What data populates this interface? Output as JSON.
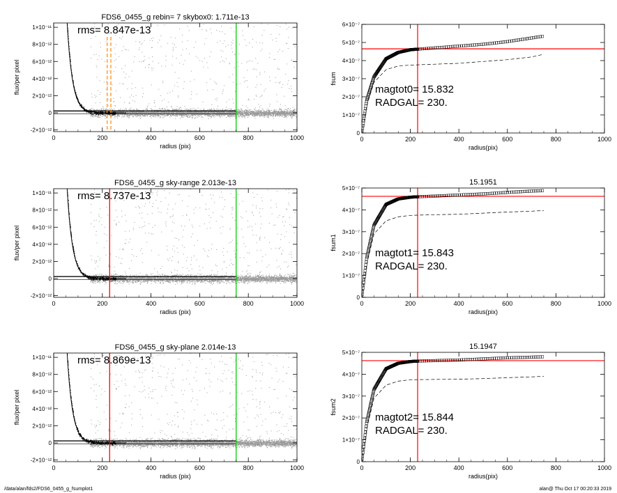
{
  "footer": {
    "path": "/data/alan/fds2/FDS6_0455_g_fsumplot1",
    "stamp": "alan@  Thu Oct 17 00:20:33 2019"
  },
  "colors": {
    "scatter": "#999999",
    "profile": "#000000",
    "radgal_line": "#ff0000",
    "sky_marker": "#00cc00",
    "bounds": "#ff8800",
    "magtot_line": "#ff0000"
  },
  "chart_data": [
    {
      "type": "scatter",
      "title": "FDS6_0455_g rebin= 7    skybox0:  1.711e-13",
      "xlabel": "radius (pix)",
      "ylabel": "flux/per pixel",
      "xlim": [
        0,
        1000
      ],
      "ylim": [
        -2.2e-12,
        1.05e-11
      ],
      "xticks": [
        0,
        200,
        400,
        600,
        800,
        1000
      ],
      "yticks": [
        -2e-12,
        0,
        2e-12,
        4e-12,
        6e-12,
        8e-12,
        1e-11
      ],
      "ytick_labels": [
        "-2×10⁻¹²",
        "0",
        "2×10⁻¹²",
        "4×10⁻¹²",
        "6×10⁻¹²",
        "8×10⁻¹²",
        "1×10⁻¹¹"
      ],
      "annotation": "rms= 8.847e-13",
      "radgal_line": null,
      "sky_radius": 750,
      "dashed_bounds": [
        220,
        235
      ],
      "hlines": [
        2.5e-13,
        1.7e-13,
        -1.2e-13
      ],
      "grid": false
    },
    {
      "type": "line",
      "title": "",
      "xlabel": "radius(pix)",
      "ylabel": "fsum",
      "xlim": [
        0,
        1000
      ],
      "ylim": [
        0,
        6e-07
      ],
      "xticks": [
        0,
        200,
        400,
        600,
        800,
        1000
      ],
      "yticks": [
        0,
        1e-07,
        2e-07,
        3e-07,
        4e-07,
        5e-07,
        6e-07
      ],
      "ytick_labels": [
        "0",
        "1×10⁻⁷",
        "2×10⁻⁷",
        "3×10⁻⁷",
        "4×10⁻⁷",
        "5×10⁻⁷",
        "6×10⁻⁷"
      ],
      "text_lines": [
        "magtot0=  15.832",
        "RADGAL=    230."
      ],
      "radgal": 230,
      "magtot_level": 4.65e-07,
      "series": [
        {
          "style": "squares",
          "x": [
            0,
            20,
            50,
            100,
            150,
            200,
            230,
            300,
            400,
            500,
            600,
            700,
            750
          ],
          "y": [
            0,
            1.8e-07,
            3.1e-07,
            4.1e-07,
            4.45e-07,
            4.6e-07,
            4.63e-07,
            4.7e-07,
            4.8e-07,
            4.9e-07,
            5.05e-07,
            5.25e-07,
            5.35e-07
          ]
        },
        {
          "style": "dashed",
          "x": [
            0,
            20,
            50,
            100,
            150,
            200,
            300,
            400,
            500,
            600,
            700,
            750
          ],
          "y": [
            0,
            1.5e-07,
            2.8e-07,
            3.5e-07,
            3.7e-07,
            3.75e-07,
            3.8e-07,
            3.85e-07,
            3.95e-07,
            4.05e-07,
            4.2e-07,
            4.35e-07
          ]
        }
      ]
    },
    {
      "type": "scatter",
      "title": "FDS6_0455_g sky-range  2.013e-13",
      "xlabel": "radius (pix)",
      "ylabel": "flux/per pixel",
      "xlim": [
        0,
        1000
      ],
      "ylim": [
        -2.2e-12,
        1.05e-11
      ],
      "xticks": [
        0,
        200,
        400,
        600,
        800,
        1000
      ],
      "yticks": [
        -2e-12,
        0,
        2e-12,
        4e-12,
        6e-12,
        8e-12,
        1e-11
      ],
      "ytick_labels": [
        "-2×10⁻¹²",
        "0",
        "2×10⁻¹²",
        "4×10⁻¹²",
        "6×10⁻¹²",
        "8×10⁻¹²",
        "1×10⁻¹¹"
      ],
      "annotation": "rms= 8.737e-13",
      "radgal_line": 230,
      "sky_radius": 750,
      "dashed_bounds": [],
      "hlines": [
        2.5e-13,
        2e-13,
        -1.2e-13
      ],
      "grid": false
    },
    {
      "type": "line",
      "title": "15.1951",
      "xlabel": "radius(pix)",
      "ylabel": "fsum1",
      "xlim": [
        0,
        1000
      ],
      "ylim": [
        0,
        5e-07
      ],
      "xticks": [
        0,
        200,
        400,
        600,
        800,
        1000
      ],
      "yticks": [
        0,
        1e-07,
        2e-07,
        3e-07,
        4e-07,
        5e-07
      ],
      "ytick_labels": [
        "0",
        "1×10⁻⁷",
        "2×10⁻⁷",
        "3×10⁻⁷",
        "4×10⁻⁷",
        "5×10⁻⁷"
      ],
      "text_lines": [
        "magtot1=  15.843",
        "RADGAL=    230."
      ],
      "radgal": 230,
      "magtot_level": 4.62e-07,
      "series": [
        {
          "style": "squares",
          "x": [
            0,
            20,
            50,
            100,
            150,
            200,
            230,
            300,
            400,
            500,
            600,
            700,
            750
          ],
          "y": [
            0,
            1.8e-07,
            3.3e-07,
            4.25e-07,
            4.5e-07,
            4.58e-07,
            4.6e-07,
            4.63e-07,
            4.68e-07,
            4.73e-07,
            4.8e-07,
            4.86e-07,
            4.88e-07
          ]
        },
        {
          "style": "dashed",
          "x": [
            0,
            20,
            50,
            100,
            150,
            200,
            300,
            400,
            500,
            600,
            700,
            750
          ],
          "y": [
            0,
            1.5e-07,
            2.9e-07,
            3.5e-07,
            3.68e-07,
            3.75e-07,
            3.78e-07,
            3.8e-07,
            3.85e-07,
            3.9e-07,
            3.94e-07,
            3.97e-07
          ]
        }
      ]
    },
    {
      "type": "scatter",
      "title": "FDS6_0455_g sky-plane  2.014e-13",
      "xlabel": "radius (pix)",
      "ylabel": "flux/per pixel",
      "xlim": [
        0,
        1000
      ],
      "ylim": [
        -2.2e-12,
        1.05e-11
      ],
      "xticks": [
        0,
        200,
        400,
        600,
        800,
        1000
      ],
      "yticks": [
        -2e-12,
        0,
        2e-12,
        4e-12,
        6e-12,
        8e-12,
        1e-11
      ],
      "ytick_labels": [
        "-2×10⁻¹²",
        "0",
        "2×10⁻¹²",
        "4×10⁻¹²",
        "6×10⁻¹²",
        "8×10⁻¹²",
        "1×10⁻¹¹"
      ],
      "annotation": "rms= 8.869e-13",
      "radgal_line": 230,
      "sky_radius": 750,
      "dashed_bounds": [],
      "hlines": [
        2.5e-13,
        2e-13,
        -1.2e-13
      ],
      "grid": false
    },
    {
      "type": "line",
      "title": "15.1947",
      "xlabel": "radius(pix)",
      "ylabel": "fsum2",
      "xlim": [
        0,
        1000
      ],
      "ylim": [
        0,
        5e-07
      ],
      "xticks": [
        0,
        200,
        400,
        600,
        800,
        1000
      ],
      "yticks": [
        0,
        1e-07,
        2e-07,
        3e-07,
        4e-07,
        5e-07
      ],
      "ytick_labels": [
        "0",
        "1×10⁻⁷",
        "2×10⁻⁷",
        "3×10⁻⁷",
        "4×10⁻⁷",
        "5×10⁻⁷"
      ],
      "text_lines": [
        "magtot2=  15.844",
        "RADGAL=    230."
      ],
      "radgal": 230,
      "magtot_level": 4.62e-07,
      "series": [
        {
          "style": "squares",
          "x": [
            0,
            20,
            50,
            100,
            150,
            200,
            230,
            300,
            400,
            500,
            600,
            700,
            750
          ],
          "y": [
            0,
            1.8e-07,
            3.3e-07,
            4.25e-07,
            4.5e-07,
            4.58e-07,
            4.6e-07,
            4.62e-07,
            4.65e-07,
            4.7e-07,
            4.75e-07,
            4.78e-07,
            4.8e-07
          ]
        },
        {
          "style": "dashed",
          "x": [
            0,
            20,
            50,
            100,
            150,
            200,
            300,
            400,
            500,
            600,
            700,
            750
          ],
          "y": [
            0,
            1.5e-07,
            2.9e-07,
            3.5e-07,
            3.68e-07,
            3.75e-07,
            3.76e-07,
            3.77e-07,
            3.8e-07,
            3.84e-07,
            3.88e-07,
            3.9e-07
          ]
        }
      ]
    }
  ]
}
